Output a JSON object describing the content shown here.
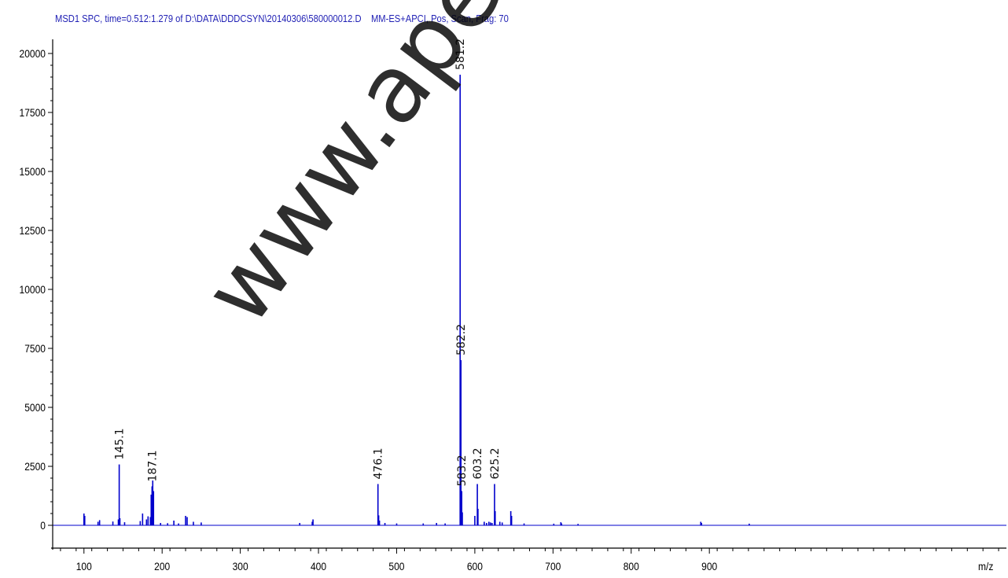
{
  "chart_data": {
    "type": "bar",
    "title": "MSD1 SPC, time=0.512:1.279 of D:\\DATA\\DDDCSYN\\20140306\\580000012.D    MM-ES+APCI, Pos, Scan, Frag: 70",
    "xlabel": "m/z",
    "ylabel": "",
    "xlim": [
      60,
      1280
    ],
    "ylim": [
      0,
      20000
    ],
    "x_ticks": [
      100,
      200,
      300,
      400,
      500,
      600,
      700,
      800,
      900
    ],
    "y_ticks": [
      0,
      2500,
      5000,
      7500,
      10000,
      12500,
      15000,
      17500,
      20000
    ],
    "grid": false,
    "series": [
      {
        "color": "#0000cc",
        "x": [
          100,
          101,
          118,
          120,
          137,
          144,
          145.1,
          146,
          152,
          172,
          175,
          180,
          182,
          185,
          186,
          187.1,
          188,
          189,
          198,
          207,
          215,
          221,
          230,
          232,
          240,
          250,
          376,
          392,
          393,
          476.1,
          477,
          478,
          485,
          500,
          534,
          551,
          562,
          581.2,
          582.2,
          583.2,
          584,
          600,
          603.2,
          604,
          612,
          615,
          618,
          620,
          622,
          625.2,
          626,
          632,
          635,
          646,
          647,
          663,
          701,
          710,
          711,
          732,
          889,
          890,
          951
        ],
        "y": [
          500,
          400,
          150,
          220,
          160,
          250,
          2580,
          300,
          130,
          180,
          500,
          250,
          380,
          350,
          1300,
          1650,
          1900,
          1450,
          100,
          90,
          200,
          80,
          400,
          350,
          150,
          120,
          100,
          150,
          250,
          1750,
          420,
          200,
          100,
          80,
          80,
          100,
          80,
          19100,
          7000,
          1450,
          550,
          400,
          1750,
          700,
          150,
          100,
          150,
          120,
          100,
          1750,
          600,
          150,
          120,
          600,
          400,
          80,
          70,
          130,
          80,
          60,
          150,
          100,
          70
        ]
      }
    ],
    "annotations": [
      {
        "text": "145.1",
        "x": 145.1
      },
      {
        "text": "187.1",
        "x": 187.1
      },
      {
        "text": "476.1",
        "x": 476.1
      },
      {
        "text": "581.2",
        "x": 581.2
      },
      {
        "text": "582.2",
        "x": 582.2
      },
      {
        "text": "583.2",
        "x": 583.2
      },
      {
        "text": "603.2",
        "x": 603.2
      },
      {
        "text": "625.2",
        "x": 625.2
      }
    ]
  },
  "watermark": "www.apexb"
}
